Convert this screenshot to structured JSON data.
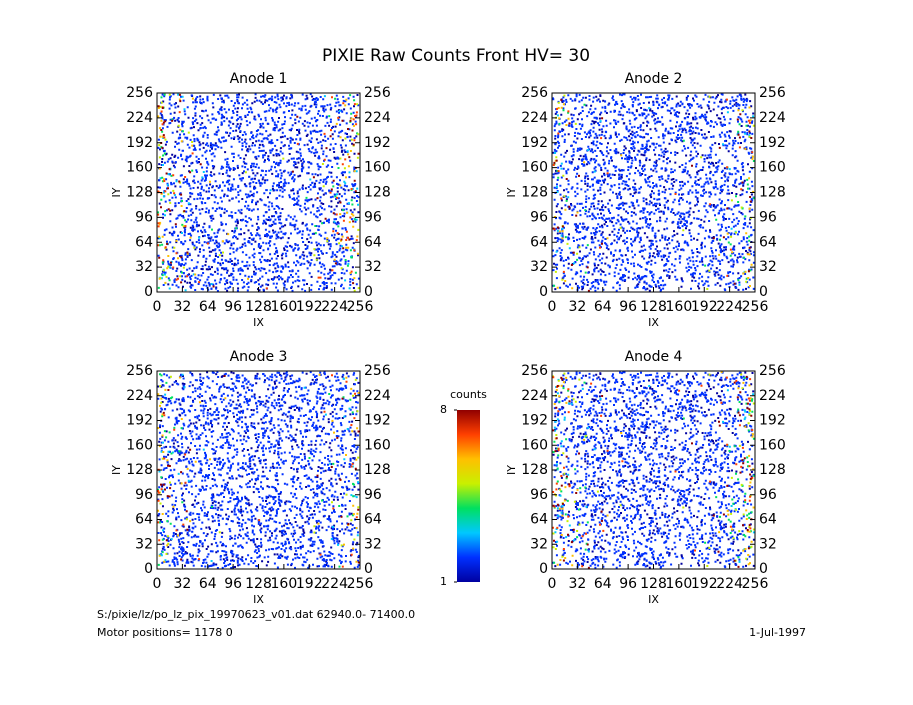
{
  "title": "PIXIE Raw Counts Front HV= 30",
  "chart_data": [
    {
      "type": "heatmap",
      "title": "Anode 1",
      "x_label": "IX",
      "y_label": "IY",
      "xlim": [
        0,
        256
      ],
      "ylim": [
        0,
        256
      ],
      "xticks": [
        0,
        32,
        64,
        96,
        128,
        160,
        192,
        224,
        256
      ],
      "yticks": [
        0,
        32,
        64,
        96,
        128,
        160,
        192,
        224,
        256
      ]
    },
    {
      "type": "heatmap",
      "title": "Anode 2",
      "x_label": "IX",
      "y_label": "IY",
      "xlim": [
        0,
        256
      ],
      "ylim": [
        0,
        256
      ],
      "xticks": [
        0,
        32,
        64,
        96,
        128,
        160,
        192,
        224,
        256
      ],
      "yticks": [
        0,
        32,
        64,
        96,
        128,
        160,
        192,
        224,
        256
      ]
    },
    {
      "type": "heatmap",
      "title": "Anode 3",
      "x_label": "IX",
      "y_label": "IY",
      "xlim": [
        0,
        256
      ],
      "ylim": [
        0,
        256
      ],
      "xticks": [
        0,
        32,
        64,
        96,
        128,
        160,
        192,
        224,
        256
      ],
      "yticks": [
        0,
        32,
        64,
        96,
        128,
        160,
        192,
        224,
        256
      ]
    },
    {
      "type": "heatmap",
      "title": "Anode 4",
      "x_label": "IX",
      "y_label": "IY",
      "xlim": [
        0,
        256
      ],
      "ylim": [
        0,
        256
      ],
      "xticks": [
        0,
        32,
        64,
        96,
        128,
        160,
        192,
        224,
        256
      ],
      "yticks": [
        0,
        32,
        64,
        96,
        128,
        160,
        192,
        224,
        256
      ]
    }
  ],
  "colorbar": {
    "label": "counts",
    "lim": [
      1,
      8
    ],
    "ticks": [
      1,
      8
    ],
    "colors": [
      "#0000a0",
      "#0030ff",
      "#00c8ff",
      "#00e060",
      "#c8f000",
      "#ffc000",
      "#ff4000",
      "#900000"
    ]
  },
  "footer": {
    "file": "S:/pixie/lz/po_lz_pix_19970623_v01.dat   62940.0- 71400.0",
    "motor": "Motor positions= 1178 0",
    "date": "1-Jul-1997"
  }
}
